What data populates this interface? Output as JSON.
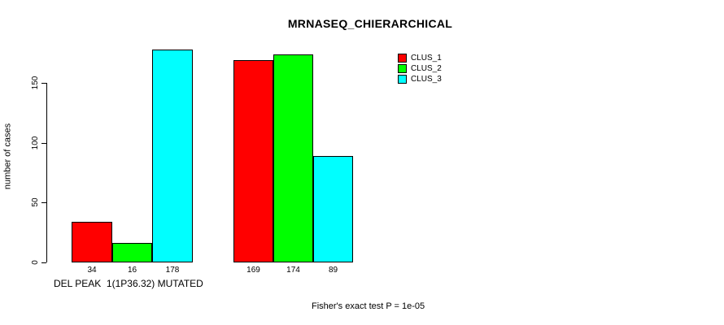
{
  "title": "MRNASEQ_CHIERARCHICAL",
  "footnote": "Fisher's exact test P = 1e-05",
  "chart_data": {
    "type": "bar",
    "title": "MRNASEQ_CHIERARCHICAL",
    "ylabel": "number of cases",
    "xlabel": "DEL PEAK  1(1P36.32) MUTATED",
    "categories": [
      "DEL PEAK  1(1P36.32) MUTATED",
      ""
    ],
    "series": [
      {
        "name": "CLUS_1",
        "color": "#ff0000",
        "values": [
          34,
          169
        ]
      },
      {
        "name": "CLUS_2",
        "color": "#00ff00",
        "values": [
          16,
          174
        ]
      },
      {
        "name": "CLUS_3",
        "color": "#00ffff",
        "values": [
          178,
          89
        ]
      }
    ],
    "bar_labels": [
      [
        34,
        16,
        178
      ],
      [
        169,
        174,
        89
      ]
    ],
    "yticks": [
      0,
      50,
      100,
      150
    ],
    "ylim": [
      0,
      178
    ],
    "grid": false,
    "legend_position": "top-right",
    "annotation": "Fisher's exact test P = 1e-05",
    "p_value": "1e-05"
  }
}
